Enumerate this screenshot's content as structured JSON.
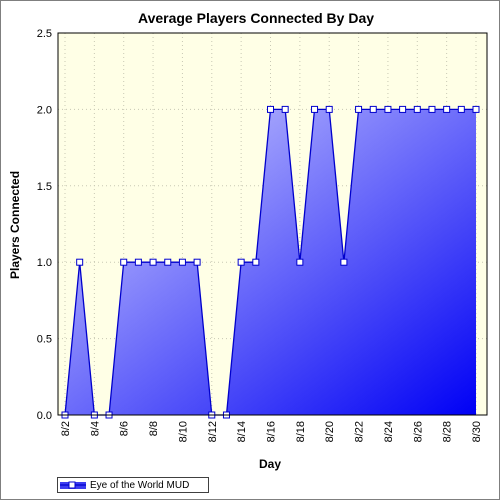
{
  "chart_data": {
    "type": "area",
    "title": "Average Players Connected By Day",
    "xlabel": "Day",
    "ylabel": "Players Connected",
    "ylim": [
      0,
      2.5
    ],
    "yticks": [
      "0.0",
      "0.5",
      "1.0",
      "1.5",
      "2.0",
      "2.5"
    ],
    "x_ticks": [
      "8/2",
      "8/4",
      "8/6",
      "8/8",
      "8/10",
      "8/12",
      "8/14",
      "8/16",
      "8/18",
      "8/20",
      "8/22",
      "8/24",
      "8/26",
      "8/28",
      "8/30"
    ],
    "x": [
      "8/2",
      "8/3",
      "8/4",
      "8/5",
      "8/6",
      "8/7",
      "8/8",
      "8/9",
      "8/10",
      "8/11",
      "8/12",
      "8/13",
      "8/14",
      "8/15",
      "8/16",
      "8/17",
      "8/18",
      "8/19",
      "8/20",
      "8/21",
      "8/22",
      "8/23",
      "8/24",
      "8/25",
      "8/26",
      "8/27",
      "8/28",
      "8/29",
      "8/30"
    ],
    "series": [
      {
        "name": "Eye of the World MUD",
        "values": [
          0,
          1,
          0,
          0,
          1,
          1,
          1,
          1,
          1,
          1,
          0,
          0,
          1,
          1,
          2,
          2,
          1,
          2,
          2,
          1,
          2,
          2,
          2,
          2,
          2,
          2,
          2,
          2,
          2
        ],
        "color": "#0000cc"
      }
    ],
    "grid": true,
    "legend": "bottom-left",
    "background": "#ffffe6"
  }
}
